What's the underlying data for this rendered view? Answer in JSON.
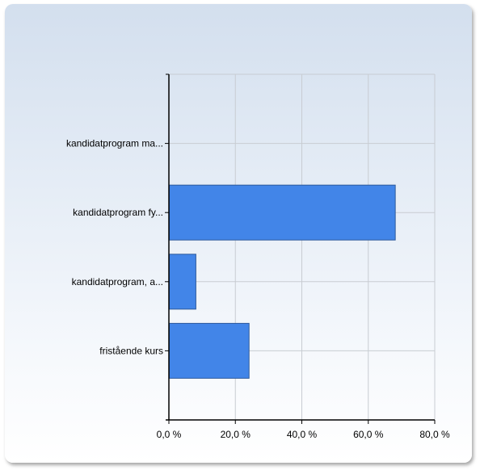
{
  "chart_data": {
    "type": "bar",
    "orientation": "horizontal",
    "categories": [
      "kandidatprogram ma...",
      "kandidatprogram fy...",
      "kandidatprogram, a...",
      "fristående kurs"
    ],
    "values": [
      0,
      68,
      8,
      24
    ],
    "xlim": [
      0,
      80
    ],
    "x_ticks": [
      0,
      20,
      40,
      60,
      80
    ],
    "x_tick_labels": [
      "0,0 %",
      "20,0 %",
      "40,0 %",
      "60,0 %",
      "80,0 %"
    ],
    "title": "",
    "xlabel": "",
    "ylabel": "",
    "grid": true,
    "bar_color": "#4285e8",
    "bar_border_color": "#2d5a9c"
  }
}
